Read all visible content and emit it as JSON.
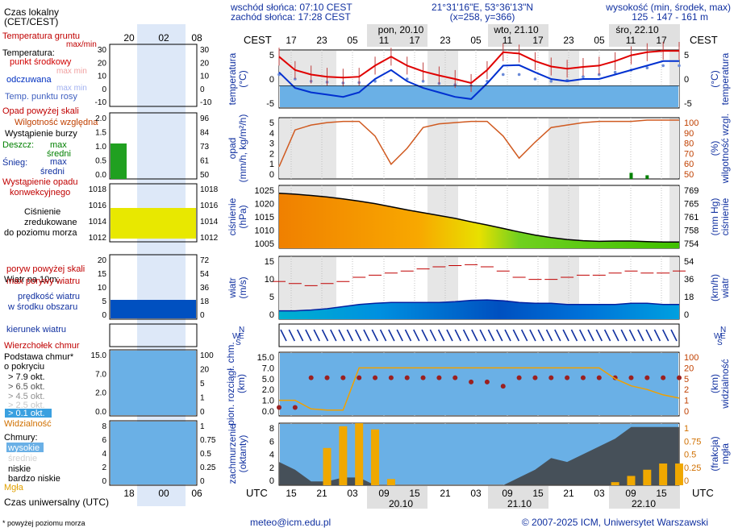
{
  "header": {
    "sunrise": "wschód słońca: 07:10 CEST",
    "sunset": "zachód słońca: 17:28 CEST",
    "coords": "21°31'16\"E, 53°36'13\"N",
    "grid": "(x=258, y=366)",
    "elev_title": "wysokość (min, środek, max)",
    "elev_values": "125 - 147 - 161 m"
  },
  "legend": {
    "local_time": "Czas lokalny",
    "local_time2": "(CET/CEST)",
    "ground_temp": "Temperatura gruntu",
    "ground_maxmin": "max/min",
    "temperature": "Temperatura:",
    "midpoint": "punkt środkowy",
    "maxmin1": "max min",
    "perceived": "odczuwana",
    "maxmin2": "max min",
    "dewpoint": "Temp. punktu rosy",
    "precip_above": "Opad powyżej skali",
    "humidity": "Wilgotność względna",
    "storm": "Wystąpienie burzy",
    "rain": "Deszcz:",
    "rain_max": "max",
    "rain_mean": "średni",
    "snow": "Śnieg:",
    "snow_max": "max",
    "snow_mean": "średni",
    "conv1": "Wystąpienie opadu",
    "conv2": "konwekcyjnego",
    "pressure1": "Ciśnienie",
    "pressure2": "zredukowane",
    "pressure3": "do poziomu morza",
    "wind10": "Wiatr na 10m:",
    "gust_above": "poryw powyżej skali",
    "gust_max": "max porywy wiatru",
    "wind_speed1": "prędkość wiatru",
    "wind_speed2": "w środku obszaru",
    "wind_dir": "kierunek wiatru",
    "cloud_top": "Wierzchołek chmur",
    "cloud_base1": "Podstawa chmur*",
    "cloud_base2": "o pokryciu",
    "okt79": "> 7.9 okt.",
    "okt65": "> 6.5 okt.",
    "okt45": "> 4.5 okt.",
    "okt25": "> 2.5 okt.",
    "okt01": "> 0.1 okt.",
    "visibility": "Widzialność",
    "clouds": "Chmury:",
    "high": "wysokie",
    "mid": "średnie",
    "low": "niskie",
    "very_low": "bardzo niskie",
    "fog": "Mgła",
    "utc_time": "Czas uniwersalny (UTC)",
    "footnote": "* powyżej poziomu morza"
  },
  "axis": {
    "cest": "CEST",
    "utc": "UTC",
    "top_hours": [
      "17",
      "23",
      "05",
      "11",
      "17",
      "23",
      "05",
      "11",
      "17",
      "23",
      "05",
      "11",
      "17"
    ],
    "bottom_hours": [
      "15",
      "21",
      "03",
      "09",
      "15",
      "21",
      "03",
      "09",
      "15",
      "21",
      "03",
      "09",
      "15"
    ],
    "top_days": [
      "pon, 20.10",
      "wto, 21.10",
      "śro, 22.10"
    ],
    "bottom_days": [
      "20.10",
      "21.10",
      "22.10"
    ],
    "legend_top_hours": [
      "20",
      "02",
      "08"
    ],
    "legend_bottom_hours": [
      "18",
      "00",
      "06"
    ]
  },
  "panel_labels": {
    "temp_left1": "temperatura",
    "temp_left2": "(°C)",
    "temp_right1": "(°C)",
    "temp_right2": "temperatura",
    "precip_left1": "opad",
    "precip_left2": "(mm/h, kg/m²/h)",
    "precip_right1": "(%)",
    "precip_right2": "wilgotność wzgl.",
    "press_left1": "ciśnienie",
    "press_left2": "(hPa)",
    "press_right1": "(mm Hg)",
    "press_right2": "ciśnienie",
    "wind_left1": "wiatr",
    "wind_left2": "(m/s)",
    "wind_right1": "(km/h)",
    "wind_right2": "wiatr",
    "cloud_left1": "pion. rozciągł. chm.",
    "cloud_left2": "(km)",
    "cloud_right1": "(km)",
    "cloud_right2": "widzialność",
    "cover_left1": "zachmurzenie",
    "cover_left2": "(oktanty)",
    "cover_right1": "(frakcja)",
    "cover_right2": "mgła"
  },
  "ticks": {
    "temp_left": [
      "5",
      "0",
      "-5"
    ],
    "temp_right": [
      "5",
      "0",
      "-5"
    ],
    "precip_left": [
      "5",
      "4",
      "3",
      "2",
      "1",
      "0"
    ],
    "precip_right": [
      "100",
      "90",
      "80",
      "70",
      "60",
      "50"
    ],
    "press_left": [
      "1025",
      "1020",
      "1015",
      "1010",
      "1005"
    ],
    "press_right": [
      "769",
      "765",
      "761",
      "758",
      "754"
    ],
    "wind_left": [
      "15",
      "10",
      "5",
      "0"
    ],
    "wind_right": [
      "54",
      "36",
      "18",
      "0"
    ],
    "cloud_left": [
      "15.0",
      "7.0",
      "5.0",
      "2.0",
      "1.0",
      "0.0"
    ],
    "cloud_right": [
      "100",
      "20",
      "5",
      "2",
      "1",
      "0"
    ],
    "cover_left": [
      "8",
      "6",
      "4",
      "2",
      "0"
    ],
    "cover_right": [
      "1",
      "0.75",
      "0.5",
      "0.25",
      "0"
    ]
  },
  "legend_ticks": {
    "temp_l": [
      "30",
      "20",
      "10",
      "0",
      "-10"
    ],
    "temp_r": [
      "30",
      "20",
      "10",
      "0",
      "-10"
    ],
    "precip_l": [
      "2.0",
      "1.5",
      "1.0",
      "0.5",
      "0.0"
    ],
    "precip_r": [
      "96",
      "84",
      "73",
      "61",
      "50"
    ],
    "press_l": [
      "1018",
      "1016",
      "1014",
      "1012"
    ],
    "press_r": [
      "1018",
      "1016",
      "1014",
      "1012"
    ],
    "wind_l": [
      "20",
      "15",
      "10",
      "5",
      "0"
    ],
    "wind_r": [
      "72",
      "54",
      "36",
      "18",
      "0"
    ],
    "cloud_l": [
      "15.0",
      "7.0",
      "2.0",
      "0.0"
    ],
    "cloud_r": [
      "100",
      "20",
      "5",
      "1",
      "0"
    ],
    "cover_l": [
      "8",
      "6",
      "4",
      "2",
      "0"
    ],
    "cover_r": [
      "1",
      "0.75",
      "0.5",
      "0.25",
      "0"
    ]
  },
  "footer": {
    "email": "meteo@icm.edu.pl",
    "copyright": "© 2007-2025 ICM, Uniwersytet Warszawski"
  },
  "colors": {
    "temp": "#e00000",
    "perceived": "#0030d0",
    "dewpoint": "#6a8ad8",
    "precip_rain": "#008000",
    "humidity": "#d05a20",
    "pressure_high": "#f08000",
    "pressure_low": "#40c000",
    "wind_gust": "#c00000",
    "cloud_fill": "#6ab0e6",
    "fog": "#f0a800"
  },
  "chart_data": [
    {
      "type": "line",
      "panel": "temperature",
      "ylim": [
        -5,
        8
      ],
      "x": [
        "17",
        "20",
        "23",
        "02",
        "05",
        "08",
        "11",
        "14",
        "17",
        "20",
        "23",
        "02",
        "05",
        "08",
        "11",
        "14",
        "17",
        "20",
        "23",
        "02",
        "05",
        "08",
        "11",
        "14",
        "17",
        "19"
      ],
      "series": [
        {
          "name": "Temperatura",
          "values": [
            6.5,
            3.5,
            2.5,
            2.0,
            1.8,
            2.0,
            4.5,
            6.5,
            4.5,
            3.2,
            2.3,
            1.5,
            0.6,
            3.5,
            7.5,
            7.2,
            5.5,
            4.3,
            3.8,
            4.2,
            4.5,
            5.5,
            6.8,
            7.5,
            7.8,
            7.8
          ]
        },
        {
          "name": "odczuwana",
          "values": [
            3.0,
            -0.5,
            -1.5,
            -2.0,
            -2.5,
            -1.5,
            1.5,
            3.5,
            1.0,
            -0.5,
            -1.5,
            -2.5,
            -3.0,
            0.5,
            4.5,
            4.6,
            3.0,
            1.5,
            1.0,
            1.5,
            1.5,
            2.5,
            3.5,
            4.5,
            5.5,
            5.5
          ]
        },
        {
          "name": "Temp. punktu rosy",
          "values": [
            2.5,
            1.5,
            1.0,
            0.8,
            0.6,
            0.7,
            1.0,
            1.2,
            1.5,
            1.0,
            0.5,
            0.2,
            0.0,
            1.0,
            2.5,
            2.5,
            1.5,
            1.0,
            1.2,
            2.0,
            2.5,
            3.0,
            3.5,
            4.0,
            4.5,
            4.5
          ]
        }
      ]
    },
    {
      "type": "line",
      "panel": "precipitation",
      "ylim": [
        0,
        5
      ],
      "y2lim": [
        50,
        100
      ],
      "x": [
        "17",
        "20",
        "23",
        "02",
        "05",
        "08",
        "11",
        "14",
        "17",
        "20",
        "23",
        "02",
        "05",
        "08",
        "11",
        "14",
        "17",
        "20",
        "23",
        "02",
        "05",
        "08",
        "11",
        "14",
        "17",
        "19"
      ],
      "series": [
        {
          "name": "Wilgotność względna",
          "values": [
            60,
            90,
            94,
            96,
            97,
            97,
            85,
            62,
            75,
            92,
            95,
            96,
            97,
            97,
            85,
            67,
            80,
            92,
            94,
            96,
            97,
            97,
            97,
            98,
            98,
            98
          ]
        },
        {
          "name": "Deszcz",
          "values": [
            0,
            0,
            0,
            0,
            0,
            0,
            0,
            0,
            0,
            0,
            0,
            0,
            0,
            0,
            0,
            0,
            0,
            0,
            0,
            0,
            0,
            0,
            0.5,
            0.3,
            0,
            0
          ]
        }
      ]
    },
    {
      "type": "area",
      "panel": "pressure",
      "ylim": [
        1005,
        1025
      ],
      "x": [
        "17",
        "20",
        "23",
        "02",
        "05",
        "08",
        "11",
        "14",
        "17",
        "20",
        "23",
        "02",
        "05",
        "08",
        "11",
        "14",
        "17",
        "20",
        "23",
        "02",
        "05",
        "08",
        "11",
        "14",
        "17",
        "19"
      ],
      "series": [
        {
          "name": "Ciśnienie",
          "values": [
            1022.5,
            1022.2,
            1021.8,
            1021.3,
            1020.7,
            1020.0,
            1019.2,
            1018.2,
            1017.2,
            1016.3,
            1015.4,
            1014.5,
            1013.4,
            1012.4,
            1011.3,
            1010.2,
            1009.2,
            1008.4,
            1007.8,
            1007.4,
            1007.2,
            1007.3,
            1007.3,
            1007.1,
            1007.0,
            1007.0
          ]
        }
      ]
    },
    {
      "type": "line",
      "panel": "wind",
      "ylim": [
        0,
        15
      ],
      "y2lim": [
        0,
        54
      ],
      "x": [
        "17",
        "20",
        "23",
        "02",
        "05",
        "08",
        "11",
        "14",
        "17",
        "20",
        "23",
        "02",
        "05",
        "08",
        "11",
        "14",
        "17",
        "20",
        "23",
        "02",
        "05",
        "08",
        "11",
        "14",
        "17",
        "19"
      ],
      "series": [
        {
          "name": "max porywy wiatru",
          "values": [
            9,
            8.5,
            8,
            8.5,
            9,
            10,
            10.5,
            11,
            11.5,
            12,
            12.5,
            12.8,
            13,
            12.5,
            11.5,
            10,
            9.5,
            9.5,
            10,
            10.5,
            10.5,
            11,
            11.5,
            11,
            11,
            11.5
          ]
        },
        {
          "name": "prędkość wiatru",
          "values": [
            2,
            2,
            2.2,
            2.5,
            3,
            3.5,
            3.8,
            4,
            4,
            4,
            4,
            4.2,
            4.5,
            4.6,
            4.4,
            4,
            3.8,
            3.8,
            3.5,
            3.5,
            3.5,
            3.5,
            3.8,
            3.8,
            3.5,
            3.5
          ]
        }
      ]
    },
    {
      "type": "scatter",
      "panel": "clouds",
      "ylim": [
        0,
        15
      ],
      "y2lim": [
        0,
        100
      ],
      "x": [
        "17",
        "20",
        "23",
        "02",
        "05",
        "08",
        "11",
        "14",
        "17",
        "20",
        "23",
        "02",
        "05",
        "08",
        "11",
        "14",
        "17",
        "20",
        "23",
        "02",
        "05",
        "08",
        "11",
        "14",
        "17",
        "19"
      ],
      "series": [
        {
          "name": "Wierzchołek chmur",
          "values": [
            2,
            2,
            9,
            9,
            9,
            9,
            9,
            9,
            9,
            9,
            9,
            9,
            8,
            8,
            7,
            9,
            9,
            9,
            9,
            9,
            9,
            9,
            9,
            9,
            9,
            9
          ]
        },
        {
          "name": "Widzialność",
          "values": [
            1,
            1,
            0.2,
            0.1,
            0.1,
            20,
            20,
            20,
            20,
            20,
            20,
            20,
            20,
            20,
            20,
            20,
            20,
            20,
            20,
            20,
            20,
            5,
            3,
            2,
            1.5,
            1.2
          ]
        }
      ]
    },
    {
      "type": "area",
      "panel": "cloud_cover",
      "ylim": [
        0,
        8
      ],
      "y2lim": [
        0,
        1
      ],
      "x": [
        "17",
        "20",
        "23",
        "02",
        "05",
        "08",
        "11",
        "14",
        "17",
        "20",
        "23",
        "02",
        "05",
        "08",
        "11",
        "14",
        "17",
        "20",
        "23",
        "02",
        "05",
        "08",
        "11",
        "14",
        "17",
        "19"
      ],
      "series": [
        {
          "name": "niskie",
          "values": [
            3,
            2,
            0.5,
            0.5,
            1,
            1,
            0,
            0,
            0,
            0,
            0,
            0,
            0,
            0,
            0,
            1,
            2,
            3.5,
            3,
            4,
            5,
            6,
            7.5,
            7.5,
            7.5,
            7.5
          ]
        },
        {
          "name": "Mgła",
          "values": [
            0,
            0,
            0,
            0.6,
            0.95,
            1,
            0.9,
            0.1,
            0,
            0,
            0,
            0,
            0,
            0,
            0,
            0,
            0,
            0,
            0,
            0,
            0,
            0.05,
            0.15,
            0.25,
            0.35,
            0.35
          ]
        }
      ]
    }
  ]
}
